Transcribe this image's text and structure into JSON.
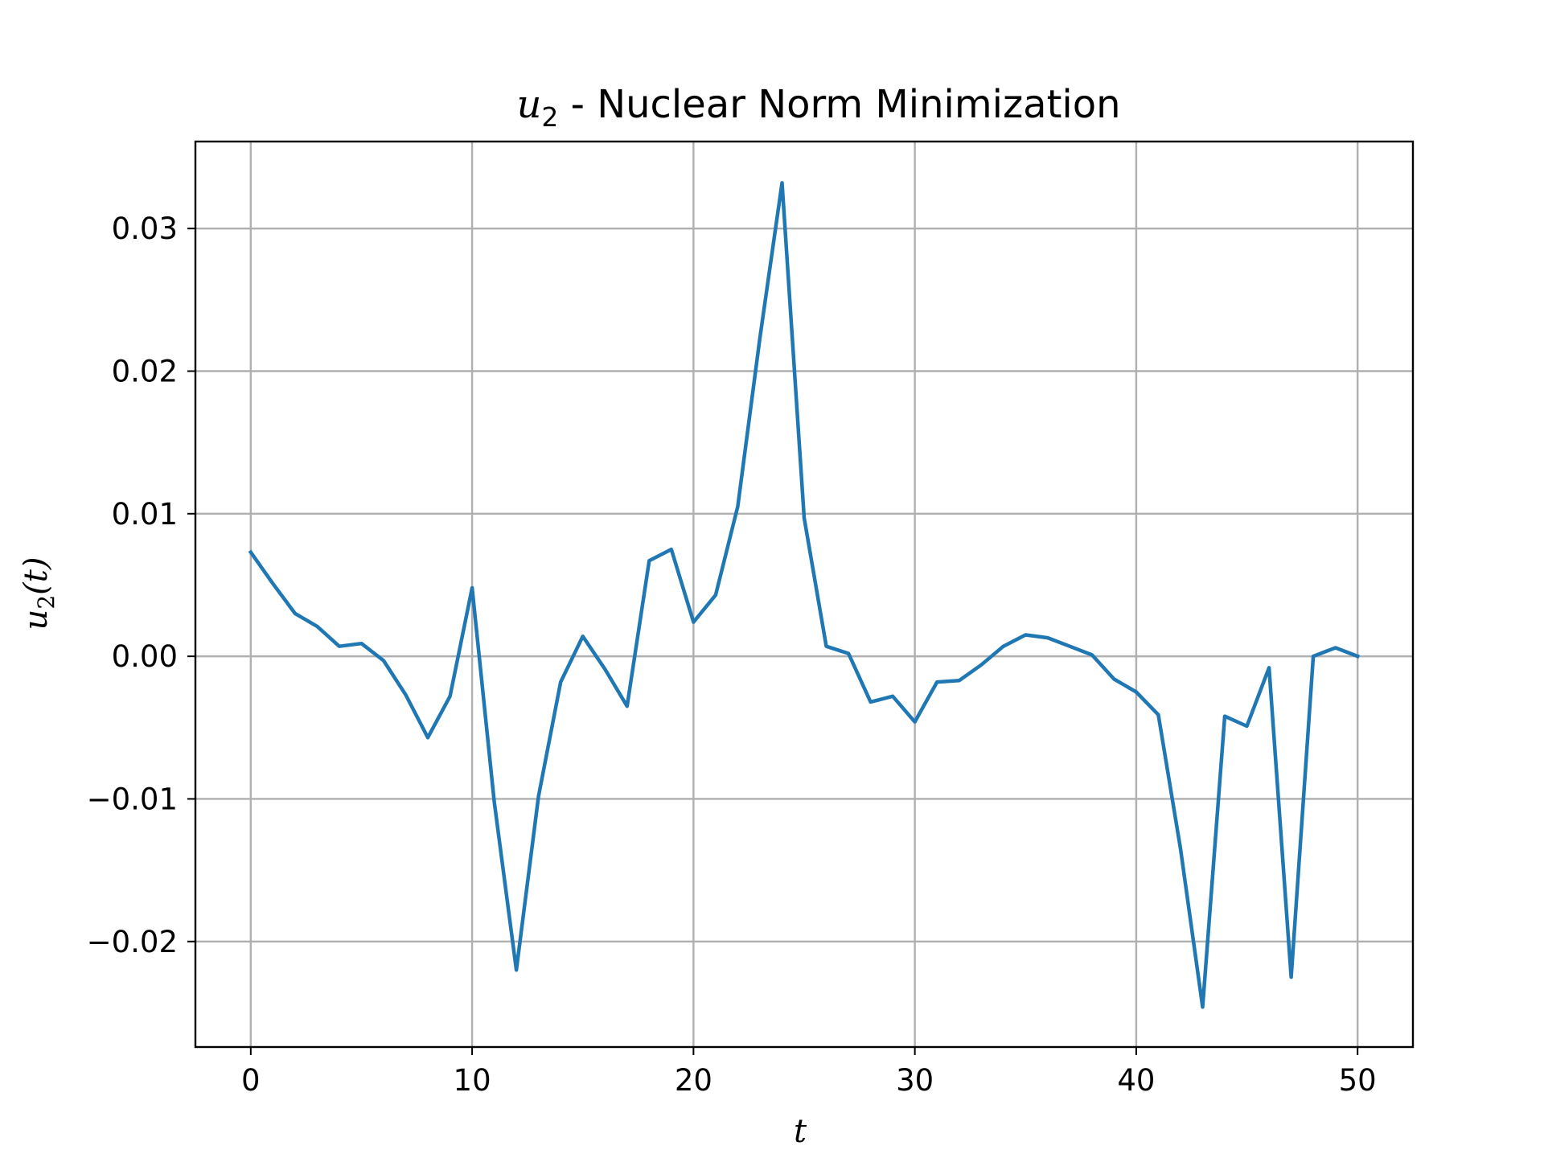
{
  "chart_data": {
    "type": "line",
    "title_main": "u",
    "title_sub": "2",
    "title_rest": " - Nuclear Norm Minimization",
    "xlabel": "t",
    "ylabel_main": "u",
    "ylabel_sub": "2",
    "ylabel_rest": "(t)",
    "xlim": [
      -2.5,
      52.5
    ],
    "ylim": [
      -0.0274,
      0.0361
    ],
    "xticks": [
      0,
      10,
      20,
      30,
      40,
      50
    ],
    "xtick_labels": [
      "0",
      "10",
      "20",
      "30",
      "40",
      "50"
    ],
    "yticks": [
      -0.02,
      -0.01,
      0.0,
      0.01,
      0.02,
      0.03
    ],
    "ytick_labels": [
      "−0.02",
      "−0.01",
      "0.00",
      "0.01",
      "0.02",
      "0.03"
    ],
    "grid": true,
    "series": [
      {
        "color": "#1f77b4",
        "x": [
          0,
          1,
          2,
          3,
          4,
          5,
          6,
          7,
          8,
          9,
          10,
          11,
          12,
          13,
          14,
          15,
          16,
          17,
          18,
          19,
          20,
          21,
          22,
          23,
          24,
          25,
          26,
          27,
          28,
          29,
          30,
          31,
          32,
          33,
          34,
          35,
          36,
          37,
          38,
          39,
          40,
          41,
          42,
          43,
          44,
          45,
          46,
          47,
          48,
          49,
          50
        ],
        "y": [
          0.0073,
          0.0051,
          0.003,
          0.0021,
          0.0007,
          0.0009,
          -0.0003,
          -0.0027,
          -0.0057,
          -0.0028,
          0.0048,
          -0.0102,
          -0.022,
          -0.0098,
          -0.0018,
          0.0014,
          -0.0009,
          -0.0035,
          0.0067,
          0.0075,
          0.0024,
          0.0043,
          0.0105,
          0.0223,
          0.0332,
          0.0097,
          0.0007,
          0.0002,
          -0.0032,
          -0.0028,
          -0.0046,
          -0.0018,
          -0.0017,
          -0.0006,
          0.0007,
          0.0015,
          0.0013,
          0.0007,
          0.0001,
          -0.0016,
          -0.0025,
          -0.0041,
          -0.0135,
          -0.0246,
          -0.0042,
          -0.0049,
          -0.0008,
          -0.0225,
          0.0,
          0.0006,
          0.0
        ]
      }
    ]
  }
}
